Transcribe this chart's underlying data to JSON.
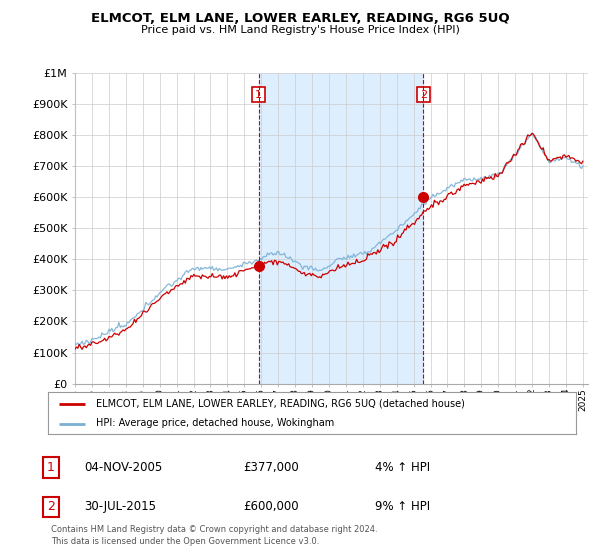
{
  "title": "ELMCOT, ELM LANE, LOWER EARLEY, READING, RG6 5UQ",
  "subtitle": "Price paid vs. HM Land Registry's House Price Index (HPI)",
  "ylim": [
    0,
    1000000
  ],
  "yticks": [
    0,
    100000,
    200000,
    300000,
    400000,
    500000,
    600000,
    700000,
    800000,
    900000,
    1000000
  ],
  "ytick_labels": [
    "£0",
    "£100K",
    "£200K",
    "£300K",
    "£400K",
    "£500K",
    "£600K",
    "£700K",
    "£800K",
    "£900K",
    "£1M"
  ],
  "hpi_color": "#7ab0d4",
  "price_color": "#cc0000",
  "shade_color": "#ddeeff",
  "marker1_year": 2005.84,
  "marker1_value": 377000,
  "marker2_year": 2015.58,
  "marker2_value": 600000,
  "legend_label1": "ELMCOT, ELM LANE, LOWER EARLEY, READING, RG6 5UQ (detached house)",
  "legend_label2": "HPI: Average price, detached house, Wokingham",
  "annotation1_date": "04-NOV-2005",
  "annotation1_price": "£377,000",
  "annotation1_hpi": "4% ↑ HPI",
  "annotation2_date": "30-JUL-2015",
  "annotation2_price": "£600,000",
  "annotation2_hpi": "9% ↑ HPI",
  "footer": "Contains HM Land Registry data © Crown copyright and database right 2024.\nThis data is licensed under the Open Government Licence v3.0.",
  "background_color": "#ffffff",
  "grid_color": "#cccccc",
  "xlim_start": 1995.0,
  "xlim_end": 2025.3
}
